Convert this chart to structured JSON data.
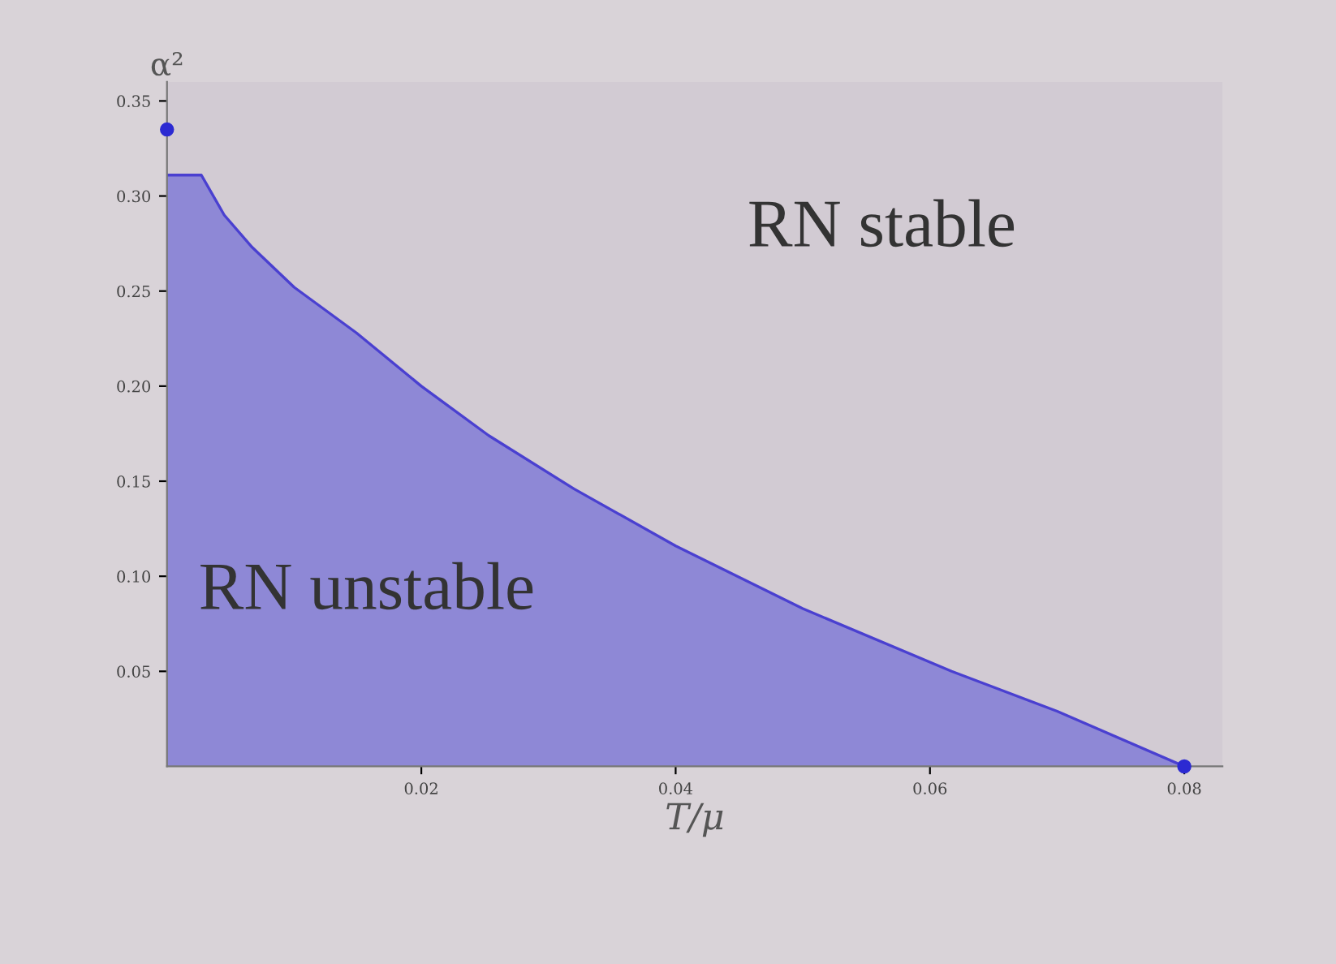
{
  "chart_data": {
    "type": "area",
    "xlabel": "T/μ",
    "ylabel": "α²",
    "series": [
      {
        "color": "#8a84d6",
        "x": [
          0,
          0.0027,
          0.0045,
          0.0067,
          0.01,
          0.0149,
          0.02,
          0.0253,
          0.032,
          0.04,
          0.05,
          0.0617,
          0.07,
          0.08
        ],
        "values": [
          0.311,
          0.311,
          0.29,
          0.273,
          0.252,
          0.228,
          0.2,
          0.174,
          0.146,
          0.116,
          0.083,
          0.05,
          0.029,
          0
        ]
      },
      {
        "type": "scatter",
        "color": "#2c2ad2",
        "marker": "circle",
        "x": [
          0,
          0.08
        ],
        "values": [
          0.335,
          0
        ]
      }
    ],
    "xlim": [
      0,
      0.083
    ],
    "ylim": [
      0,
      0.36
    ],
    "xticks": [
      {
        "value": 0.02,
        "label": "0.02"
      },
      {
        "value": 0.04,
        "label": "0.04"
      },
      {
        "value": 0.06,
        "label": "0.06"
      },
      {
        "value": 0.08,
        "label": "0.08"
      }
    ],
    "yticks": [
      {
        "value": 0.05,
        "label": "0.05"
      },
      {
        "value": 0.1,
        "label": "0.10"
      },
      {
        "value": 0.15,
        "label": "0.15"
      },
      {
        "value": 0.2,
        "label": "0.20"
      },
      {
        "value": 0.25,
        "label": "0.25"
      },
      {
        "value": 0.3,
        "label": "0.30"
      },
      {
        "value": 0.35,
        "label": "0.35"
      }
    ],
    "grid": false,
    "legend": false,
    "annotations": [
      "RN stable",
      "RN unstable"
    ]
  }
}
